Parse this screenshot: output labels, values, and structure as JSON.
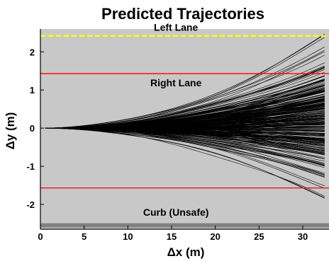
{
  "chart_data": {
    "type": "line",
    "title": "Predicted Trajectories",
    "xlabel": "Δx (m)",
    "ylabel": "Δy (m)",
    "xlim": [
      0,
      33
    ],
    "ylim": [
      -2.65,
      2.6
    ],
    "x_ticks": [
      0,
      5,
      10,
      15,
      20,
      25,
      30
    ],
    "y_ticks": [
      -2,
      -1,
      0,
      1,
      2
    ],
    "background": "#c8c8c8",
    "grid": false,
    "reference_lines": [
      {
        "name": "left-lane-line",
        "y": 2.42,
        "color": "#ffff00",
        "style": "dashed"
      },
      {
        "name": "right-lane-upper-line",
        "y": 1.43,
        "color": "#ff0000",
        "style": "solid"
      },
      {
        "name": "right-lane-lower-line",
        "y": -1.57,
        "color": "#ff0000",
        "style": "solid"
      },
      {
        "name": "curb-line",
        "y": -2.55,
        "color": "#808080",
        "style": "thick"
      }
    ],
    "annotations": [
      {
        "text": "Left Lane",
        "x": 15.5,
        "y": 2.55
      },
      {
        "text": "Right Lane",
        "x": 15.5,
        "y": 1.1
      },
      {
        "text": "Curb (Unsafe)",
        "x": 15.5,
        "y": -2.3
      }
    ],
    "trajectory_model": {
      "description": "bundle of predicted paths y = c * x^2 from origin",
      "x_range": [
        0.5,
        33
      ],
      "count": 260,
      "endpoint_y_at_x33_min": -2.4,
      "endpoint_y_at_x33_max": 2.6,
      "line_color": "#000000"
    }
  }
}
